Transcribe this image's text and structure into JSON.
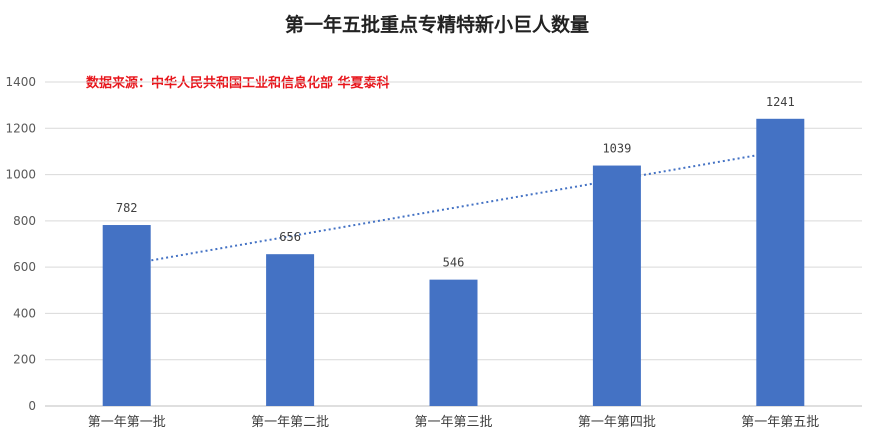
{
  "chart_data": {
    "type": "bar",
    "title": "第一年五批重点专精特新小巨人数量",
    "source_note": "数据来源：中华人民共和国工业和信息化部 华夏泰科",
    "categories": [
      "第一年第一批",
      "第一年第二批",
      "第一年第三批",
      "第一年第四批",
      "第一年第五批"
    ],
    "series": [
      {
        "values": [
          782,
          656,
          546,
          1039,
          1241
        ],
        "color": "#4472c4"
      }
    ],
    "data_labels": [
      "782",
      "656",
      "546",
      "1039",
      "1241"
    ],
    "y_ticks": [
      "0",
      "200",
      "400",
      "600",
      "800",
      "1000",
      "1200",
      "1400"
    ],
    "ylim": [
      0,
      1400
    ],
    "trendline": {
      "type": "linear",
      "style": "dotted",
      "color": "#4472c4",
      "start": 611,
      "end": 1101
    },
    "grid": true,
    "legend": "none",
    "xlabel": "",
    "ylabel": ""
  }
}
